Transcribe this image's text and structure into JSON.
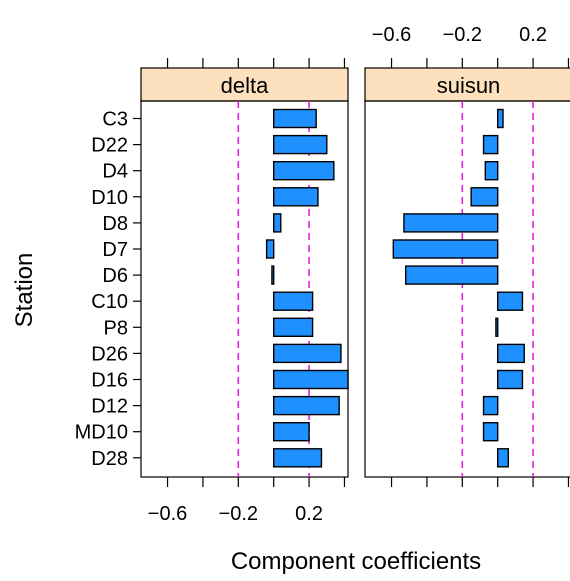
{
  "chart_data": {
    "type": "bar",
    "orientation": "horizontal",
    "xlabel": "Component coefficients",
    "ylabel": "Station",
    "xlim": [
      -0.75,
      0.42
    ],
    "xticks": [
      -0.6,
      -0.4,
      -0.2,
      0,
      0.2,
      0.4
    ],
    "xtick_labels": [
      "−0.6",
      "",
      "−0.2",
      "",
      "0.2",
      ""
    ],
    "reference_lines": [
      -0.2,
      0.2
    ],
    "categories": [
      "C3",
      "D22",
      "D4",
      "D10",
      "D8",
      "D7",
      "D6",
      "C10",
      "P8",
      "D26",
      "D16",
      "D12",
      "MD10",
      "D28"
    ],
    "panels": [
      {
        "name": "delta",
        "values": [
          0.24,
          0.3,
          0.34,
          0.25,
          0.04,
          -0.04,
          -0.01,
          0.22,
          0.22,
          0.38,
          0.42,
          0.37,
          0.2,
          0.27
        ]
      },
      {
        "name": "suisun",
        "values": [
          0.03,
          -0.08,
          -0.07,
          -0.15,
          -0.53,
          -0.59,
          -0.52,
          0.14,
          -0.01,
          0.15,
          0.14,
          -0.08,
          -0.08,
          0.06
        ]
      }
    ],
    "colors": {
      "bar": "#1e90ff",
      "strip": "#fde0bd",
      "reference": "#e020e0"
    }
  }
}
